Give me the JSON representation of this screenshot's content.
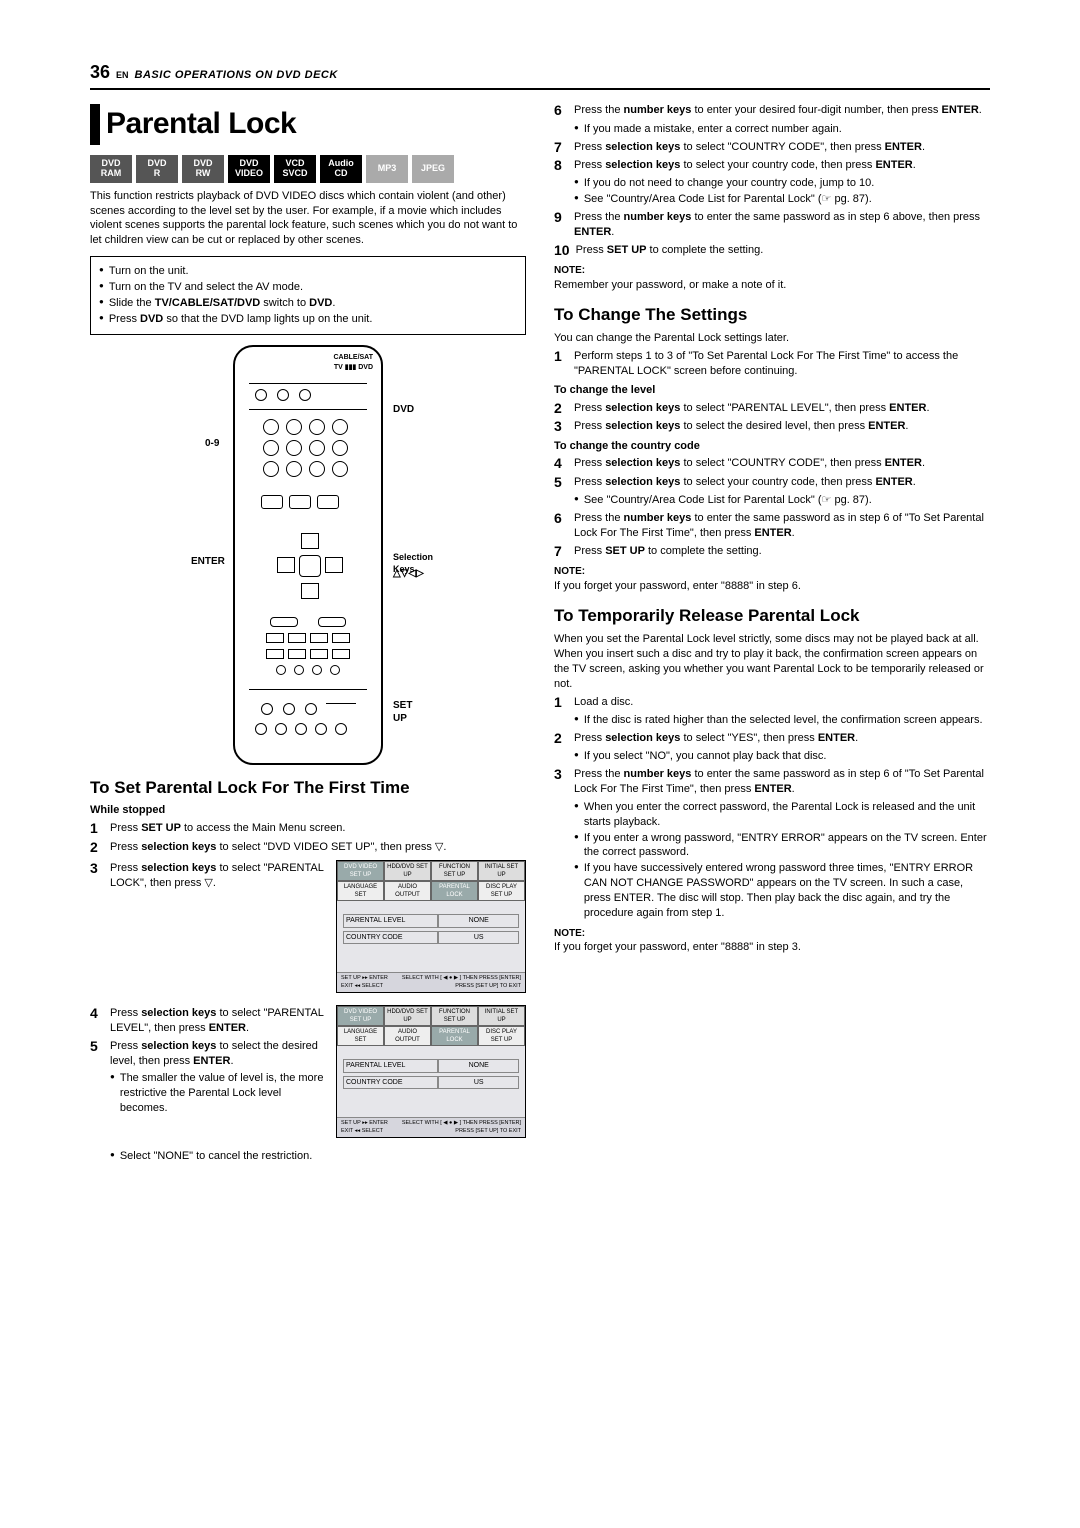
{
  "header": {
    "pageNum": "36",
    "lang": "EN",
    "section": "BASIC OPERATIONS ON DVD DECK"
  },
  "title": "Parental Lock",
  "badges": [
    {
      "t": "DVD",
      "b": "RAM",
      "cls": "dark"
    },
    {
      "t": "DVD",
      "b": "R",
      "cls": "dark"
    },
    {
      "t": "DVD",
      "b": "RW",
      "cls": "dark"
    },
    {
      "t": "DVD",
      "b": "VIDEO",
      "cls": "black"
    },
    {
      "t": "VCD",
      "b": "SVCD",
      "cls": "black"
    },
    {
      "t": "Audio",
      "b": "CD",
      "cls": "black"
    },
    {
      "t": "MP3",
      "b": "",
      "cls": "gray"
    },
    {
      "t": "JPEG",
      "b": "",
      "cls": "gray"
    }
  ],
  "intro1": "This function restricts playback of DVD VIDEO discs which contain violent (and other) scenes according to the level set by the user. For example, if a movie which includes violent scenes supports the parental lock feature, such scenes which you do not want to let children view can be cut or replaced by other scenes.",
  "prep": [
    "Turn on the unit.",
    "Turn on the TV and select the AV mode.",
    "Slide the TV/CABLE/SAT/DVD switch to DVD.",
    "Press DVD so that the DVD lamp lights up on the unit."
  ],
  "remoteLabels": {
    "dvd": "DVD",
    "numbers": "0-9",
    "enter": "ENTER",
    "selKeys": "Selection Keys",
    "arrows": "△▽◁▷",
    "setup": "SET UP",
    "cable": "CABLE/SAT",
    "tvdvd": "TV ▮▮▮ DVD"
  },
  "sec1": {
    "title": "To Set Parental Lock For The First Time",
    "cond": "While stopped",
    "s1a": "Press ",
    "s1b": "SET UP",
    "s1c": " to access the Main Menu screen.",
    "s2a": "Press ",
    "s2b": "selection keys",
    "s2c": " to select \"DVD VIDEO SET UP\", then press ▽.",
    "s3a": "Press ",
    "s3b": "selection keys",
    "s3c": " to select \"PARENTAL LOCK\", then press ▽.",
    "s4a": "Press ",
    "s4b": "selection keys",
    "s4c": " to select \"PARENTAL LEVEL\", then press ",
    "s4d": "ENTER",
    "s4e": ".",
    "s5a": "Press ",
    "s5b": "selection keys",
    "s5c": " to select the desired level, then press ",
    "s5d": "ENTER",
    "s5e": ".",
    "s5n1": "The smaller the value of level is, the more restrictive the Parental Lock level becomes.",
    "s5n2": "Select \"NONE\" to cancel the restriction."
  },
  "menu": {
    "tabs": [
      "DVD VIDEO SET UP",
      "HDD/DVD SET UP",
      "FUNCTION SET UP",
      "INITIAL SET UP"
    ],
    "row2": [
      "LANGUAGE SET",
      "AUDIO OUTPUT",
      "PARENTAL LOCK",
      "DISC PLAY SET UP"
    ],
    "f1k": "PARENTAL LEVEL",
    "f1v": "NONE",
    "f2k": "COUNTRY CODE",
    "f2v": "US",
    "foot1": "SET UP ▸▸ ENTER\nEXIT ◂◂ SELECT",
    "foot2": "SELECT WITH [ ◀ ● ▶ ] THEN PRESS [ENTER]\nPRESS [SET UP] TO EXIT"
  },
  "right": {
    "s6a": "Press the ",
    "s6b": "number keys",
    "s6c": " to enter your desired four-digit number, then press ",
    "s6d": "ENTER",
    "s6e": ".",
    "s6n": "If you made a mistake, enter a correct number again.",
    "s7a": "Press ",
    "s7b": "selection keys",
    "s7c": " to select \"COUNTRY CODE\", then press ",
    "s7d": "ENTER",
    "s7e": ".",
    "s8a": "Press ",
    "s8b": "selection keys",
    "s8c": " to select your country code, then press ",
    "s8d": "ENTER",
    "s8e": ".",
    "s8n1": "If you do not need to change your country code, jump to 10.",
    "s8n2": "See \"Country/Area Code List for Parental Lock\" (☞ pg. 87).",
    "s9a": "Press the ",
    "s9b": "number keys",
    "s9c": " to enter the same password as in step 6 above, then press ",
    "s9d": "ENTER",
    "s9e": ".",
    "s10a": "Press ",
    "s10b": "SET UP",
    "s10c": " to complete the setting.",
    "noteH": "NOTE:",
    "note1": "Remember your password, or make a note of it.",
    "sec2title": "To Change The Settings",
    "sec2intro": "You can change the Parental Lock settings later.",
    "c1a": "Perform steps 1 to 3 of \"To Set Parental Lock For The First Time\" to access the \"PARENTAL LOCK\" screen before continuing.",
    "sub1": "To change the level",
    "c2a": "Press ",
    "c2b": "selection keys",
    "c2c": " to select \"PARENTAL LEVEL\", then press ",
    "c2d": "ENTER",
    "c2e": ".",
    "c3a": "Press ",
    "c3b": "selection keys",
    "c3c": " to select the desired level, then press ",
    "c3d": "ENTER",
    "c3e": ".",
    "sub2": "To change the country code",
    "c4a": "Press ",
    "c4b": "selection keys",
    "c4c": " to select \"COUNTRY CODE\", then press ",
    "c4d": "ENTER",
    "c4e": ".",
    "c5a": "Press ",
    "c5b": "selection keys",
    "c5c": " to select your country code, then press ",
    "c5d": "ENTER",
    "c5e": ".",
    "c5n": "See \"Country/Area Code List for Parental Lock\" (☞ pg. 87).",
    "c6a": "Press the ",
    "c6b": "number keys",
    "c6c": " to enter the same password as in step 6 of \"To Set Parental Lock For The First Time\", then press ",
    "c6d": "ENTER",
    "c6e": ".",
    "c7a": "Press ",
    "c7b": "SET UP",
    "c7c": " to complete the setting.",
    "note2": "If you forget your password, enter \"8888\" in step 6.",
    "sec3title": "To Temporarily Release Parental Lock",
    "sec3intro": "When you set the Parental Lock level strictly, some discs may not be played back at all. When you insert such a disc and try to play it back, the confirmation screen appears on the TV screen, asking you whether you want Parental Lock to be temporarily released or not.",
    "t1": "Load a disc.",
    "t1n": "If the disc is rated higher than the selected level, the confirmation screen appears.",
    "t2a": "Press ",
    "t2b": "selection keys",
    "t2c": " to select \"YES\", then press ",
    "t2d": "ENTER",
    "t2e": ".",
    "t2n": "If you select \"NO\", you cannot play back that disc.",
    "t3a": "Press the ",
    "t3b": "number keys",
    "t3c": " to enter the same password as in step 6 of \"To Set Parental Lock For The First Time\", then press ",
    "t3d": "ENTER",
    "t3e": ".",
    "t3n1": "When you enter the correct password, the Parental Lock is released and the unit starts playback.",
    "t3n2": "If you enter a wrong password, \"ENTRY ERROR\" appears on the TV screen. Enter the correct password.",
    "t3n3": "If you have successively entered wrong password three times, \"ENTRY ERROR CAN NOT CHANGE PASSWORD\" appears on the TV screen. In such a case, press ENTER. The disc will stop. Then play back the disc again, and try the procedure again from step 1.",
    "note3": "If you forget your password, enter \"8888\" in step 3."
  }
}
